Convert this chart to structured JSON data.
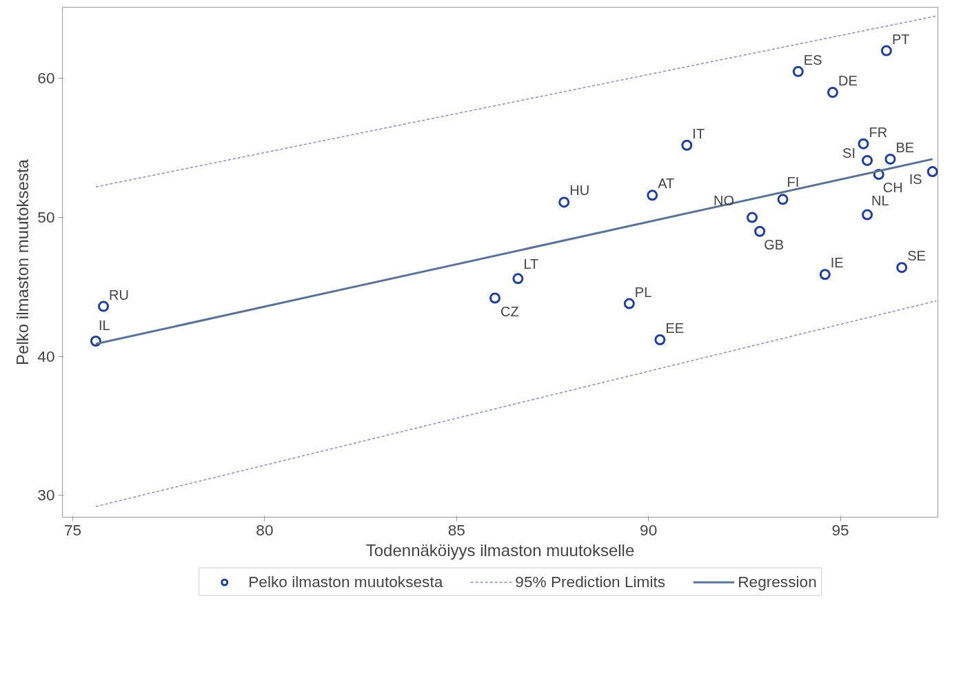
{
  "chart_data": {
    "type": "scatter",
    "xlabel": "Todennäköiyys ilmaston muutokselle",
    "ylabel": "Pelko ilmaston muutoksesta",
    "xlim": [
      74.73,
      97.54
    ],
    "ylim": [
      28.43,
      65.13
    ],
    "xticks": [
      75,
      80,
      85,
      90,
      95
    ],
    "yticks": [
      30,
      40,
      50,
      60
    ],
    "grid": false,
    "legend": "bottom",
    "series": [
      {
        "name": "Pelko ilmaston muutoksesta",
        "marker": "circle",
        "color": "#1f3f99",
        "x": [
          75.6,
          75.8,
          86.0,
          86.6,
          87.8,
          89.5,
          90.1,
          90.3,
          91.0,
          92.7,
          92.9,
          93.5,
          93.9,
          94.6,
          94.8,
          95.6,
          95.7,
          95.7,
          96.0,
          96.3,
          96.2,
          96.6,
          97.4
        ],
        "values": [
          41.1,
          43.6,
          44.2,
          45.6,
          51.1,
          43.8,
          51.6,
          41.2,
          55.2,
          50.0,
          49.0,
          51.3,
          60.5,
          45.9,
          59.0,
          55.3,
          54.1,
          50.2,
          53.1,
          54.2,
          62.0,
          46.4,
          53.3
        ]
      },
      {
        "name": "95% Prediction Limits",
        "type": "line",
        "marker": "none",
        "line_style": "dashed",
        "color": "#8a8ac8",
        "x": [
          75.6,
          97.5
        ],
        "values": [
          52.2,
          64.5
        ]
      },
      {
        "type": "line",
        "marker": "none",
        "line_style": "dashed",
        "color": "#8a8ac8",
        "x": [
          75.6,
          97.5
        ],
        "values": [
          29.2,
          44.0
        ]
      },
      {
        "name": "Regression",
        "type": "line",
        "marker": "none",
        "line_style": "solid",
        "color": "#5a7394",
        "x": [
          75.6,
          97.4
        ],
        "values": [
          40.9,
          54.2
        ]
      }
    ],
    "annotations": [
      {
        "text": "IL",
        "x": 75.6,
        "y": 41.1
      },
      {
        "text": "RU",
        "x": 75.8,
        "y": 43.6
      },
      {
        "text": "CZ",
        "x": 86.0,
        "y": 44.2
      },
      {
        "text": "LT",
        "x": 86.6,
        "y": 45.6
      },
      {
        "text": "HU",
        "x": 87.8,
        "y": 51.1
      },
      {
        "text": "PL",
        "x": 89.5,
        "y": 43.8
      },
      {
        "text": "AT",
        "x": 90.1,
        "y": 51.6
      },
      {
        "text": "EE",
        "x": 90.3,
        "y": 41.2
      },
      {
        "text": "IT",
        "x": 91.0,
        "y": 55.2
      },
      {
        "text": "NO",
        "x": 92.7,
        "y": 50.0
      },
      {
        "text": "GB",
        "x": 92.9,
        "y": 49.0
      },
      {
        "text": "FI",
        "x": 93.5,
        "y": 51.3
      },
      {
        "text": "ES",
        "x": 93.9,
        "y": 60.5
      },
      {
        "text": "IE",
        "x": 94.6,
        "y": 45.9
      },
      {
        "text": "DE",
        "x": 94.8,
        "y": 59.0
      },
      {
        "text": "FR",
        "x": 95.6,
        "y": 55.3
      },
      {
        "text": "SI",
        "x": 95.7,
        "y": 54.1
      },
      {
        "text": "NL",
        "x": 95.7,
        "y": 50.2
      },
      {
        "text": "CH",
        "x": 96.0,
        "y": 53.1
      },
      {
        "text": "BE",
        "x": 96.3,
        "y": 54.2
      },
      {
        "text": "PT",
        "x": 96.2,
        "y": 62.0
      },
      {
        "text": "SE",
        "x": 96.6,
        "y": 46.4
      },
      {
        "text": "IS",
        "x": 97.4,
        "y": 53.3
      }
    ]
  }
}
